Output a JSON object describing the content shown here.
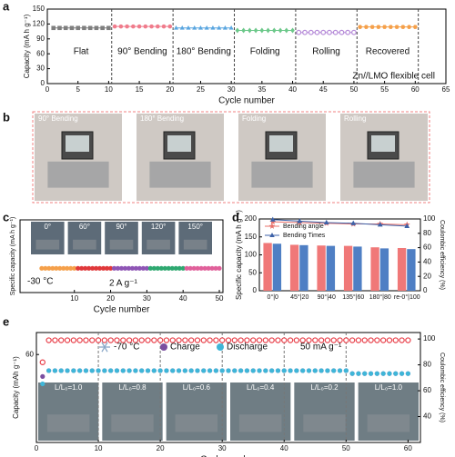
{
  "panel_labels": [
    "a",
    "b",
    "c",
    "d",
    "e"
  ],
  "panel_b": {
    "photo_labels": [
      "90° Bending",
      "180° Bending",
      "Folding",
      "Rolling"
    ]
  },
  "chart_data": [
    {
      "type": "line",
      "xlabel": "Cycle number",
      "ylabel": "Capacity (mA h g⁻¹)",
      "xlim": [
        0,
        65
      ],
      "xticks": [
        0,
        5,
        10,
        15,
        20,
        25,
        30,
        35,
        40,
        45,
        50,
        55,
        60,
        65
      ],
      "ylim": [
        0,
        150
      ],
      "yticks": [
        0,
        30,
        60,
        90,
        120,
        150
      ],
      "legend": "inline",
      "annotations": [
        "Zn//LMO flexible cell"
      ],
      "series": [
        {
          "name": "Flat",
          "color": "#7f7f7f",
          "marker": "square",
          "x": [
            1,
            2,
            3,
            4,
            5,
            6,
            7,
            8,
            9,
            10
          ],
          "values": [
            112,
            112,
            112,
            112,
            112,
            112,
            112,
            112,
            112,
            112
          ]
        },
        {
          "name": "90° Bending",
          "color": "#f07c8c",
          "marker": "circle",
          "x": [
            11,
            12,
            13,
            14,
            15,
            16,
            17,
            18,
            19,
            20
          ],
          "values": [
            115,
            115,
            115,
            115,
            115,
            115,
            115,
            115,
            115,
            115
          ]
        },
        {
          "name": "180° Bending",
          "color": "#5aa6e0",
          "marker": "triangle",
          "x": [
            21,
            22,
            23,
            24,
            25,
            26,
            27,
            28,
            29,
            30
          ],
          "values": [
            112,
            112,
            112,
            112,
            112,
            112,
            112,
            112,
            112,
            112
          ]
        },
        {
          "name": "Folding",
          "color": "#6cc88a",
          "marker": "diamond",
          "x": [
            31,
            32,
            33,
            34,
            35,
            36,
            37,
            38,
            39,
            40
          ],
          "values": [
            107,
            107,
            107,
            107,
            107,
            107,
            107,
            107,
            107,
            107
          ]
        },
        {
          "name": "Rolling",
          "color": "#b58ad8",
          "marker": "circle-open",
          "x": [
            41,
            42,
            43,
            44,
            45,
            46,
            47,
            48,
            49,
            50
          ],
          "values": [
            103,
            103,
            103,
            103,
            103,
            103,
            103,
            103,
            103,
            103
          ]
        },
        {
          "name": "Recovered",
          "color": "#f5a04a",
          "marker": "hexagon",
          "x": [
            51,
            52,
            53,
            54,
            55,
            56,
            57,
            58,
            59,
            60
          ],
          "values": [
            114,
            114,
            114,
            114,
            114,
            114,
            114,
            114,
            114,
            114
          ]
        }
      ]
    },
    {
      "type": "scatter",
      "xlabel": "Cycle number",
      "ylabel": "Specific capacity (mA h g⁻¹)",
      "xlim": [
        -5,
        51
      ],
      "xticks": [
        10,
        20,
        30,
        40,
        50
      ],
      "ylim": [
        0,
        300
      ],
      "annotations": [
        "-30 °C",
        "2 A g⁻¹"
      ],
      "photo_labels": [
        "0°",
        "60°",
        "90°",
        "120°",
        "150°"
      ],
      "series": [
        {
          "color": "#f5a04a",
          "marker": "circle",
          "x": [
            1,
            2,
            3,
            4,
            5,
            6,
            7,
            8,
            9,
            10
          ],
          "values": [
            100,
            100,
            100,
            100,
            100,
            100,
            100,
            100,
            100,
            100
          ]
        },
        {
          "color": "#e0383a",
          "marker": "circle",
          "x": [
            11,
            12,
            13,
            14,
            15,
            16,
            17,
            18,
            19,
            20
          ],
          "values": [
            100,
            100,
            100,
            100,
            100,
            100,
            100,
            100,
            100,
            100
          ]
        },
        {
          "color": "#8e55b5",
          "marker": "circle",
          "x": [
            21,
            22,
            23,
            24,
            25,
            26,
            27,
            28,
            29,
            30
          ],
          "values": [
            100,
            100,
            100,
            100,
            100,
            100,
            100,
            100,
            100,
            100
          ]
        },
        {
          "color": "#2ea870",
          "marker": "circle",
          "x": [
            31,
            32,
            33,
            34,
            35,
            36,
            37,
            38,
            39,
            40
          ],
          "values": [
            100,
            100,
            100,
            100,
            100,
            100,
            100,
            100,
            100,
            100
          ]
        },
        {
          "color": "#e0609a",
          "marker": "circle",
          "x": [
            41,
            42,
            43,
            44,
            45,
            46,
            47,
            48,
            49,
            50
          ],
          "values": [
            100,
            100,
            100,
            100,
            100,
            100,
            100,
            100,
            100,
            100
          ]
        }
      ]
    },
    {
      "type": "bar",
      "ylabel": "Specific capacity (mA h g⁻¹)",
      "y2label": "Coulombic efficiency (%)",
      "categories": [
        "0°|0",
        "45°|20",
        "90°|40",
        "135°|60",
        "180°|80",
        "re-0°|100"
      ],
      "ylim": [
        0,
        200
      ],
      "yticks": [
        0,
        50,
        100,
        150,
        200
      ],
      "y2lim": [
        0,
        100
      ],
      "y2ticks": [
        0,
        20,
        40,
        60,
        80,
        100
      ],
      "legend": "upper left",
      "series": [
        {
          "color": "#f07878",
          "values": [
            133,
            128,
            126,
            125,
            121,
            119
          ]
        },
        {
          "color": "#4f7fc4",
          "values": [
            131,
            127,
            125,
            123,
            118,
            116
          ]
        },
        {
          "name": "Bending angle",
          "color": "#e8706a",
          "type": "line",
          "marker": "star",
          "axis": "y2",
          "values": [
            96,
            95,
            94,
            93,
            93,
            92
          ]
        },
        {
          "name": "Bending Times",
          "color": "#3d62a8",
          "type": "line",
          "marker": "triangle",
          "axis": "y2",
          "values": [
            99,
            97,
            95,
            94,
            92,
            90
          ]
        }
      ]
    },
    {
      "type": "scatter",
      "xlabel": "Cycle number",
      "ylabel": "Capacity (mAh g⁻¹)",
      "y2label": "Coulombic efficiency (%)",
      "xlim": [
        0,
        62
      ],
      "xticks": [
        0,
        10,
        20,
        30,
        40,
        50,
        60
      ],
      "ylim": [
        0,
        75
      ],
      "yticks": [
        60
      ],
      "y2lim": [
        20,
        105
      ],
      "y2ticks": [
        40,
        60,
        80,
        100
      ],
      "legend": "upper center",
      "annotations": [
        "-70 °C",
        "50 mA g⁻¹"
      ],
      "photo_labels": [
        "L/L₀=1.0",
        "L/L₀=0.8",
        "L/L₀=0.6",
        "L/L₀=0.4",
        "L/L₀=0.2",
        "L/L₀=1.0"
      ],
      "series": [
        {
          "color": "#e8404a",
          "marker": "circle-open",
          "axis": "y2",
          "x": [
            1,
            2,
            3,
            4,
            5,
            6,
            7,
            8,
            9,
            10,
            11,
            12,
            13,
            14,
            15,
            16,
            17,
            18,
            19,
            20,
            21,
            22,
            23,
            24,
            25,
            26,
            27,
            28,
            29,
            30,
            31,
            32,
            33,
            34,
            35,
            36,
            37,
            38,
            39,
            40,
            41,
            42,
            43,
            44,
            45,
            46,
            47,
            48,
            49,
            50,
            51,
            52,
            53,
            54,
            55,
            56,
            57,
            58,
            59,
            60
          ],
          "values": [
            82,
            99,
            99,
            99,
            99,
            99,
            99,
            99,
            99,
            99,
            99,
            99,
            99,
            99,
            99,
            99,
            99,
            99,
            99,
            99,
            99,
            99,
            99,
            99,
            99,
            99,
            99,
            99,
            99,
            99,
            99,
            99,
            99,
            99,
            99,
            99,
            99,
            99,
            99,
            99,
            99,
            99,
            99,
            99,
            99,
            99,
            99,
            99,
            99,
            99,
            99,
            99,
            99,
            99,
            99,
            99,
            99,
            99,
            99,
            99
          ]
        },
        {
          "name": "Charge",
          "color": "#7b4fa0",
          "marker": "circle",
          "x": [
            1,
            2,
            3,
            4,
            5,
            6,
            7,
            8,
            9,
            10,
            11,
            12,
            13,
            14,
            15,
            16,
            17,
            18,
            19,
            20,
            21,
            22,
            23,
            24,
            25,
            26,
            27,
            28,
            29,
            30,
            31,
            32,
            33,
            34,
            35,
            36,
            37,
            38,
            39,
            40,
            41,
            42,
            43,
            44,
            45,
            46,
            47,
            48,
            49,
            50,
            51,
            52,
            53,
            54,
            55,
            56,
            57,
            58,
            59,
            60
          ],
          "values": [
            45,
            49,
            49,
            49,
            49,
            49,
            49,
            49,
            49,
            49,
            49,
            49,
            49,
            49,
            49,
            49,
            49,
            49,
            49,
            49,
            49,
            49,
            49,
            49,
            49,
            49,
            49,
            49,
            49,
            49,
            49,
            49,
            49,
            49,
            49,
            49,
            49,
            49,
            49,
            49,
            49,
            49,
            49,
            49,
            49,
            49,
            49,
            49,
            49,
            49,
            47,
            47,
            47,
            47,
            47,
            47,
            47,
            47,
            47,
            47
          ]
        },
        {
          "name": "Discharge",
          "color": "#3fb6d8",
          "marker": "circle",
          "x": [
            1,
            2,
            3,
            4,
            5,
            6,
            7,
            8,
            9,
            10,
            11,
            12,
            13,
            14,
            15,
            16,
            17,
            18,
            19,
            20,
            21,
            22,
            23,
            24,
            25,
            26,
            27,
            28,
            29,
            30,
            31,
            32,
            33,
            34,
            35,
            36,
            37,
            38,
            39,
            40,
            41,
            42,
            43,
            44,
            45,
            46,
            47,
            48,
            49,
            50,
            51,
            52,
            53,
            54,
            55,
            56,
            57,
            58,
            59,
            60
          ],
          "values": [
            40,
            49,
            49,
            49,
            49,
            49,
            49,
            49,
            49,
            49,
            49,
            49,
            49,
            49,
            49,
            49,
            49,
            49,
            49,
            49,
            49,
            49,
            49,
            49,
            49,
            49,
            49,
            49,
            49,
            49,
            49,
            49,
            49,
            49,
            49,
            49,
            49,
            49,
            49,
            49,
            49,
            49,
            49,
            49,
            49,
            49,
            49,
            49,
            49,
            49,
            47,
            47,
            47,
            47,
            47,
            47,
            47,
            47,
            47,
            47
          ]
        }
      ]
    }
  ]
}
